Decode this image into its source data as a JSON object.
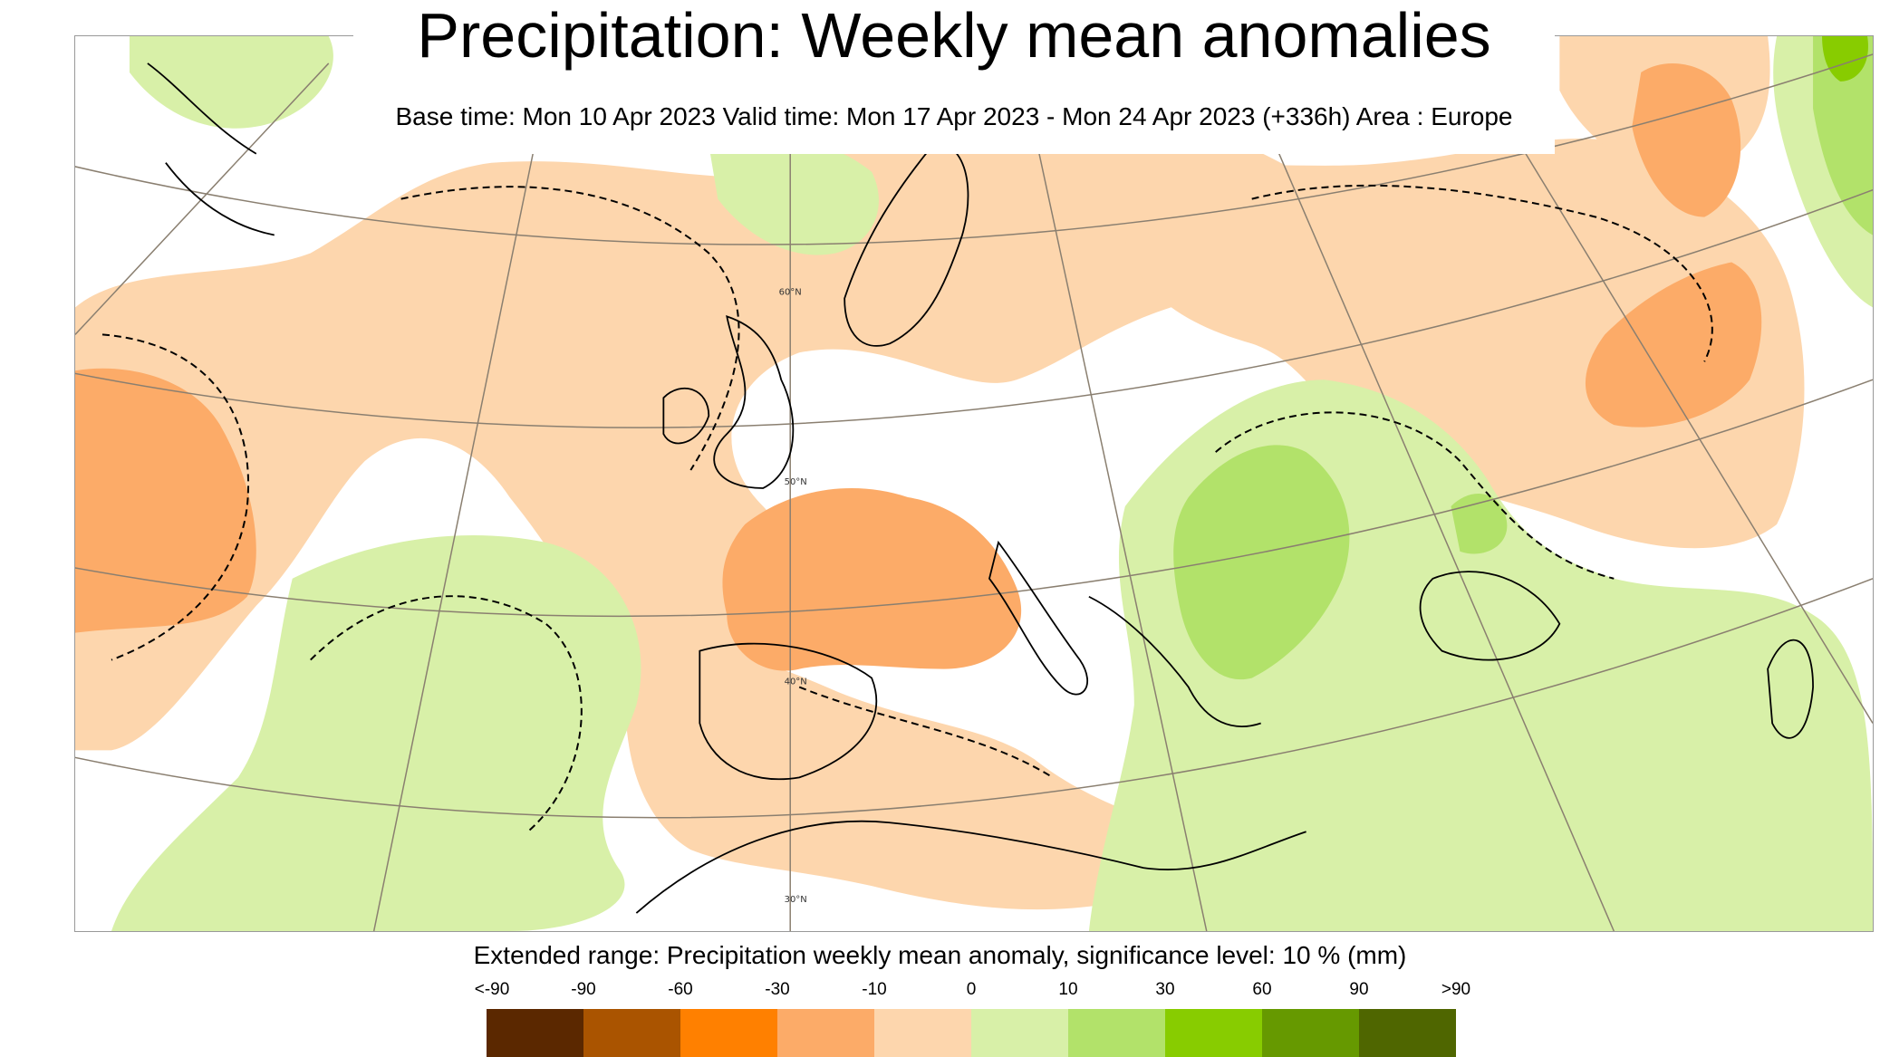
{
  "title": "Precipitation: Weekly mean anomalies",
  "subtitle": "Base time: Mon 10 Apr 2023 Valid time: Mon 17 Apr 2023 - Mon 24 Apr 2023 (+336h) Area : Europe",
  "map": {
    "area": "Europe",
    "latitude_labels": [
      "60°N",
      "50°N",
      "40°N",
      "30°N"
    ],
    "colors": {
      "dry_light": "#fdd6ad",
      "dry_medium": "#fcab68",
      "wet_light": "#d8f0a8",
      "wet_medium": "#b2e26a",
      "graticule": "#8a7f70",
      "coastline": "#000000"
    }
  },
  "legend": {
    "caption": "Extended range: Precipitation weekly mean anomaly, significance level: 10 % (mm)",
    "labels": [
      "<-90",
      "-90",
      "-60",
      "-30",
      "-10",
      "0",
      "10",
      "30",
      "60",
      "90",
      ">90"
    ],
    "colors": [
      "#5b2800",
      "#aa5400",
      "#ff8000",
      "#fcab68",
      "#fdd6ad",
      "#d8f0a8",
      "#b2e26a",
      "#88cc00",
      "#669900",
      "#4f6600"
    ]
  }
}
